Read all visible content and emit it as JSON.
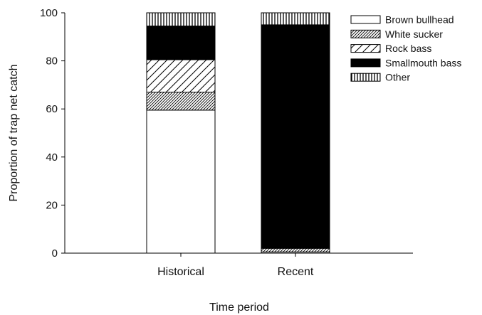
{
  "chart_data": {
    "type": "bar",
    "stacked": true,
    "categories": [
      "Historical",
      "Recent"
    ],
    "series": [
      {
        "name": "Brown bullhead",
        "pattern": "solid-white",
        "values": [
          59.5,
          0.5
        ]
      },
      {
        "name": "White sucker",
        "pattern": "dense-diagonal",
        "values": [
          7.5,
          1.5
        ]
      },
      {
        "name": "Rock bass",
        "pattern": "wide-diagonal",
        "values": [
          13.5,
          0
        ]
      },
      {
        "name": "Smallmouth bass",
        "pattern": "solid-black",
        "values": [
          14,
          93
        ]
      },
      {
        "name": "Other",
        "pattern": "vertical-lines",
        "values": [
          5.5,
          5
        ]
      }
    ],
    "xlabel": "Time period",
    "ylabel": "Proportion of trap net catch",
    "ylim": [
      0,
      100
    ],
    "yticks": [
      0,
      20,
      40,
      60,
      80,
      100
    ],
    "legend_position": "top-right",
    "grid": false
  }
}
